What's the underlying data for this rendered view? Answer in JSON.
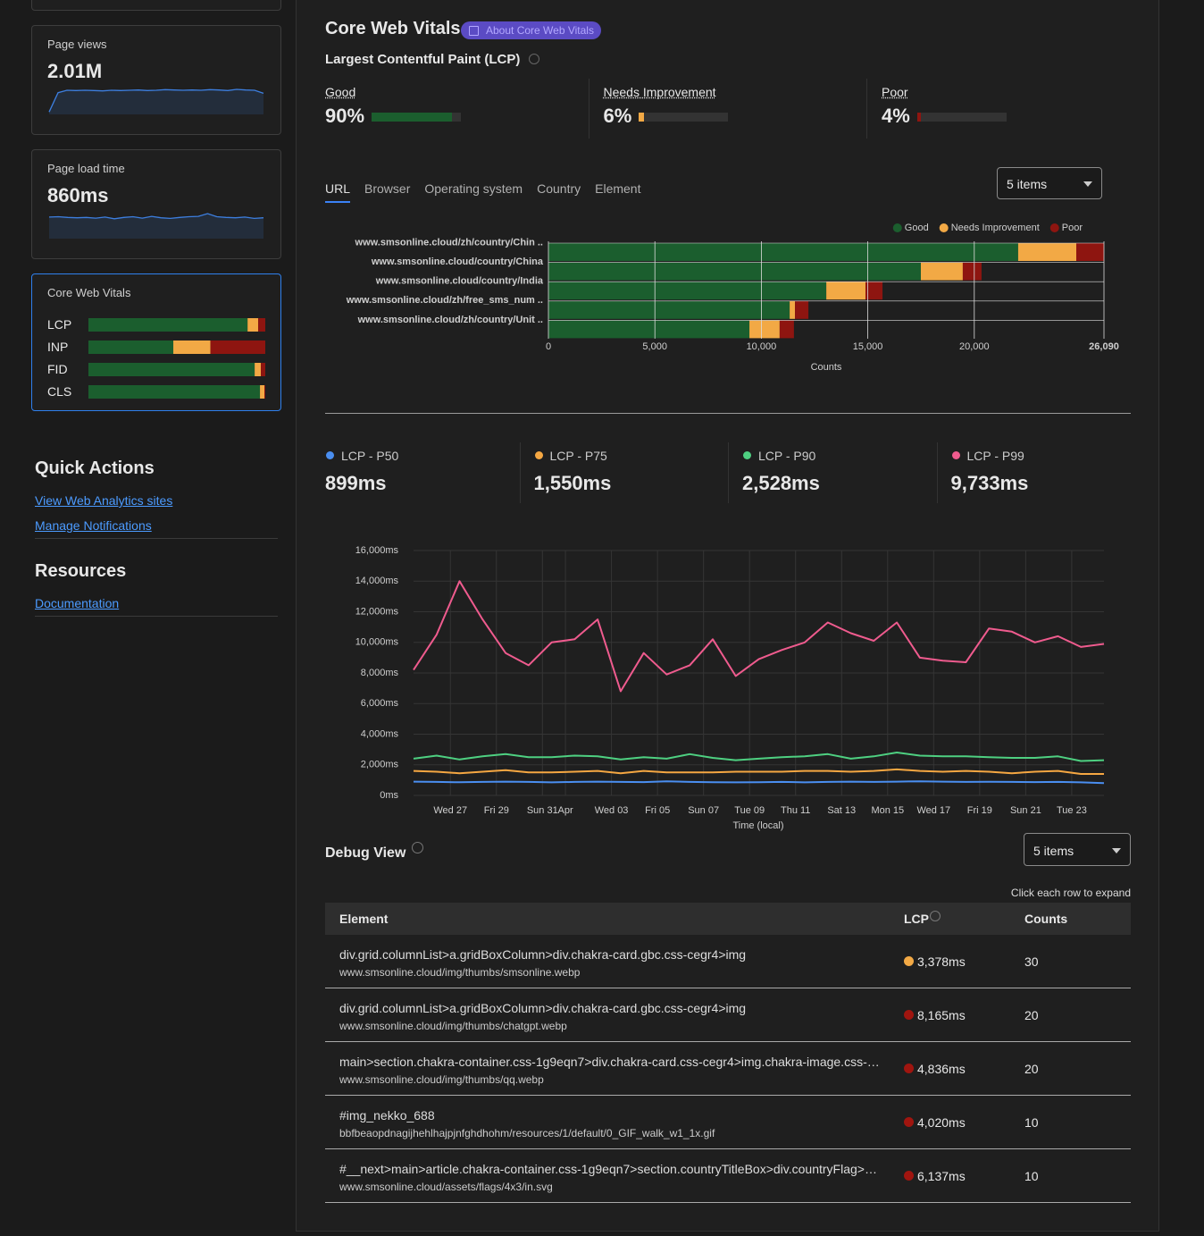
{
  "sidebar": {
    "metric_cards": [
      {
        "title": "Page views",
        "value": "2.01M",
        "sparkline": [
          8,
          72,
          80,
          79,
          80,
          79,
          78,
          80,
          79,
          80,
          81,
          79,
          80,
          82,
          81,
          80,
          81,
          80,
          82,
          81,
          79,
          83,
          81,
          80,
          70
        ]
      },
      {
        "title": "Page load time",
        "value": "860ms",
        "sparkline": [
          62,
          63,
          61,
          60,
          61,
          59,
          62,
          57,
          61,
          63,
          59,
          64,
          60,
          58,
          61,
          63,
          64,
          72,
          63,
          61,
          60,
          62,
          58,
          60
        ]
      }
    ],
    "sparkline_color": "#3d7fe0",
    "cwv_card": {
      "title": "Core Web Vitals",
      "metrics": [
        {
          "name": "LCP",
          "segments": [
            90,
            6,
            4
          ]
        },
        {
          "name": "INP",
          "segments": [
            48,
            21,
            31
          ]
        },
        {
          "name": "FID",
          "segments": [
            94,
            3.5,
            2.5
          ]
        },
        {
          "name": "CLS",
          "segments": [
            97,
            2.5,
            0.5
          ]
        }
      ],
      "colors": [
        "#1b5e2e",
        "#f2a945",
        "#8e1510"
      ]
    },
    "quick_actions": {
      "title": "Quick Actions",
      "links": [
        "View Web Analytics sites",
        "Manage Notifications"
      ]
    },
    "resources": {
      "title": "Resources",
      "links": [
        "Documentation"
      ]
    }
  },
  "main": {
    "title": "Core Web Vitals",
    "badge": "About Core Web Vitals",
    "subtitle": "Largest Contentful Paint (LCP)",
    "summary": [
      {
        "name": "Good",
        "value": 90,
        "value_label": "90%",
        "color": "#1b5e2e"
      },
      {
        "name": "Needs Improvement",
        "value": 6,
        "value_label": "6%",
        "color": "#f2a945"
      },
      {
        "name": "Poor",
        "value": 4,
        "value_label": "4%",
        "color": "#8e1510"
      }
    ],
    "tabs": [
      "URL",
      "Browser",
      "Operating system",
      "Country",
      "Element"
    ],
    "active_tab": 0,
    "select": "5 items",
    "stats": [
      {
        "name": "LCP - P50",
        "value": "899ms",
        "color": "#4a8ef0"
      },
      {
        "name": "LCP - P75",
        "value": "1,550ms",
        "color": "#f5a742"
      },
      {
        "name": "LCP - P90",
        "value": "2,528ms",
        "color": "#4ed081"
      },
      {
        "name": "LCP - P99",
        "value": "9,733ms",
        "color": "#ef5b8e"
      }
    ],
    "debug": {
      "title": "Debug View",
      "select": "5 items",
      "hint": "Click each row to expand",
      "columns": [
        "Element",
        "LCP",
        "Counts"
      ],
      "rows": [
        {
          "element": "div.grid.columnList>a.gridBoxColumn>div.chakra-card.gbc.css-cegr4>img",
          "url": "www.smsonline.cloud/img/thumbs/smsonline.webp",
          "lcp": "3,378ms",
          "dot_color": "#f2a945",
          "counts": "30"
        },
        {
          "element": "div.grid.columnList>a.gridBoxColumn>div.chakra-card.gbc.css-cegr4>img",
          "url": "www.smsonline.cloud/img/thumbs/chatgpt.webp",
          "lcp": "8,165ms",
          "dot_color": "#a0150f",
          "counts": "20"
        },
        {
          "element": "main>section.chakra-container.css-1g9eqn7>div.chakra-card.css-cegr4>img.chakra-image.css-…",
          "url": "www.smsonline.cloud/img/thumbs/qq.webp",
          "lcp": "4,836ms",
          "dot_color": "#a0150f",
          "counts": "20"
        },
        {
          "element": "#img_nekko_688",
          "url": "bbfbeaopdnagijhehlhajpjnfghdhohm/resources/1/default/0_GIF_walk_w1_1x.gif",
          "lcp": "4,020ms",
          "dot_color": "#a0150f",
          "counts": "10"
        },
        {
          "element": "#__next>main>article.chakra-container.css-1g9eqn7>section.countryTitleBox>div.countryFlag>…",
          "url": "www.smsonline.cloud/assets/flags/4x3/in.svg",
          "lcp": "6,137ms",
          "dot_color": "#a0150f",
          "counts": "10"
        }
      ]
    }
  },
  "chart_data": [
    {
      "type": "bar",
      "orientation": "horizontal",
      "stacked": true,
      "categories": [
        "www.smsonline.cloud/zh/country/Chin ..",
        "www.smsonline.cloud/country/China",
        "www.smsonline.cloud/country/India",
        "www.smsonline.cloud/zh/free_sms_num ..",
        "www.smsonline.cloud/zh/country/Unit .."
      ],
      "series": [
        {
          "name": "Good",
          "color": "#1b5e2e",
          "values": [
            22060,
            17490,
            13050,
            11330,
            9440
          ]
        },
        {
          "name": "Needs Improvement",
          "color": "#f2a945",
          "values": [
            2730,
            1970,
            1840,
            250,
            1420
          ]
        },
        {
          "name": "Poor",
          "color": "#8e1510",
          "values": [
            1300,
            880,
            800,
            630,
            670
          ]
        }
      ],
      "xlim": [
        0,
        26090
      ],
      "xticks": [
        0,
        {
          "value": 5000,
          "label": "5,000"
        },
        {
          "value": 10000,
          "label": "10,000"
        },
        {
          "value": 15000,
          "label": "15,000"
        },
        {
          "value": 20000,
          "label": "20,000"
        },
        {
          "value": 26090,
          "label": "26,090"
        }
      ],
      "xlabel": "Counts",
      "grid": true,
      "legend": "top-right"
    },
    {
      "type": "line",
      "categories": [
        null,
        null,
        "Wed 27",
        null,
        "Fri 29",
        null,
        "Sun 31",
        "Apr",
        null,
        "Wed 03",
        null,
        "Fri 05",
        null,
        "Sun 07",
        null,
        "Tue 09",
        null,
        "Thu 11",
        null,
        "Sat 13",
        null,
        "Mon 15",
        null,
        "Wed 17",
        null,
        "Fri 19",
        null,
        "Sun 21",
        null,
        "Tue 23",
        null
      ],
      "series": [
        {
          "color": "#4a8ef0",
          "values": [
            900,
            880,
            860,
            880,
            900,
            880,
            850,
            880,
            900,
            880,
            870,
            920,
            880,
            860,
            850,
            860,
            880,
            850,
            880,
            900,
            880,
            900,
            920,
            900,
            880,
            890,
            880,
            870,
            880,
            850,
            800
          ]
        },
        {
          "color": "#f5a742",
          "values": [
            1600,
            1550,
            1450,
            1550,
            1650,
            1500,
            1500,
            1550,
            1600,
            1450,
            1600,
            1500,
            1500,
            1500,
            1550,
            1550,
            1550,
            1600,
            1600,
            1550,
            1600,
            1700,
            1600,
            1550,
            1600,
            1550,
            1450,
            1550,
            1600,
            1400,
            1400
          ]
        },
        {
          "color": "#4ed081",
          "values": [
            2400,
            2600,
            2350,
            2550,
            2700,
            2500,
            2500,
            2600,
            2550,
            2350,
            2500,
            2400,
            2700,
            2450,
            2300,
            2400,
            2500,
            2550,
            2700,
            2400,
            2550,
            2800,
            2600,
            2550,
            2550,
            2500,
            2450,
            2450,
            2550,
            2250,
            2300
          ]
        },
        {
          "color": "#ef5b8e",
          "values": [
            8200,
            10500,
            14000,
            11500,
            9300,
            8500,
            10000,
            10200,
            11500,
            6800,
            9300,
            7900,
            8500,
            10200,
            7800,
            8900,
            9500,
            10000,
            11300,
            10600,
            10100,
            11300,
            9000,
            8800,
            8700,
            10900,
            10700,
            10000,
            10400,
            9700,
            9900
          ]
        }
      ],
      "ylim": [
        0,
        16000
      ],
      "yticks": [
        {
          "value": 0,
          "label": "0ms"
        },
        {
          "value": 2000,
          "label": "2,000ms"
        },
        {
          "value": 4000,
          "label": "4,000ms"
        },
        {
          "value": 6000,
          "label": "6,000ms"
        },
        {
          "value": 8000,
          "label": "8,000ms"
        },
        {
          "value": 10000,
          "label": "10,000ms"
        },
        {
          "value": 12000,
          "label": "12,000ms"
        },
        {
          "value": 14000,
          "label": "14,000ms"
        },
        {
          "value": 16000,
          "label": "16,000ms"
        }
      ],
      "xlabel": "Time (local)",
      "grid": true
    }
  ]
}
